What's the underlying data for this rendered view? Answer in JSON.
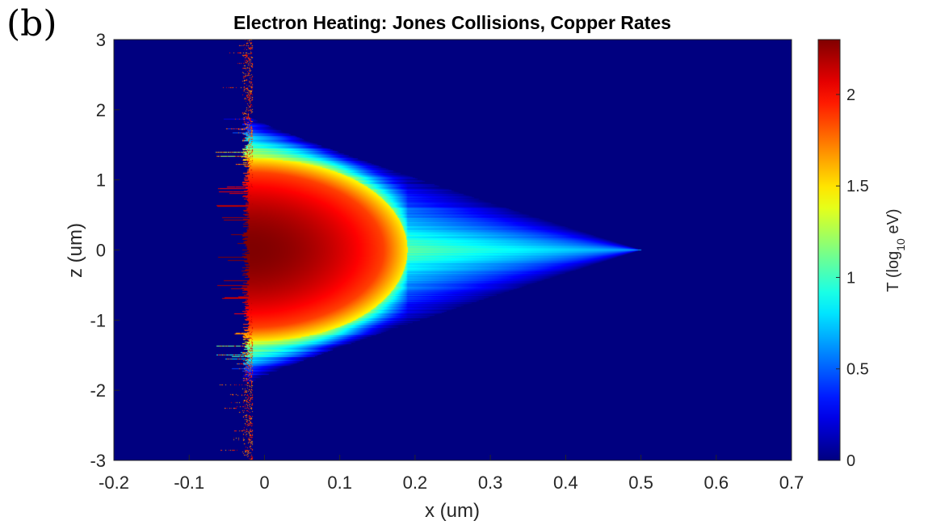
{
  "panel_label": "(b)",
  "chart_data": {
    "type": "heatmap",
    "title": "Electron Heating: Jones Collisions, Copper Rates",
    "xlabel": "x (um)",
    "ylabel": "z (um)",
    "xlim": [
      -0.2,
      0.7
    ],
    "ylim": [
      -3,
      3
    ],
    "x_ticks": [
      -0.2,
      -0.1,
      0,
      0.1,
      0.2,
      0.3,
      0.4,
      0.5,
      0.6,
      0.7
    ],
    "x_tick_labels": [
      "-0.2",
      "-0.1",
      "0",
      "0.1",
      "0.2",
      "0.3",
      "0.4",
      "0.5",
      "0.6",
      "0.7"
    ],
    "y_ticks": [
      -3,
      -2,
      -1,
      0,
      1,
      2,
      3
    ],
    "y_tick_labels": [
      "-3",
      "-2",
      "-1",
      "0",
      "1",
      "2",
      "3"
    ],
    "colormap": "jet",
    "colorbar": {
      "label_main": "T (log",
      "label_sub": "10",
      "label_end": " eV)",
      "range": [
        0,
        2.3
      ],
      "ticks": [
        0,
        0.5,
        1,
        1.5,
        2
      ],
      "tick_labels": [
        "0",
        "0.5",
        "1",
        "1.5",
        "2"
      ]
    },
    "field": {
      "description_values": "log10 electron temperature (eV) over x-z plane",
      "peak_value": 2.3,
      "peak_location": [
        0.0,
        0.0
      ],
      "front_x": -0.02,
      "hot_core_x_extent": [
        -0.02,
        0.19
      ],
      "hot_core_z_extent": [
        -1.3,
        1.3
      ],
      "halo_x_extent": [
        -0.02,
        0.5
      ],
      "halo_z_extent": [
        -1.9,
        1.9
      ],
      "background_value": 0.0
    },
    "colors": {
      "dark_blue": "#00008f",
      "blue": "#0000ff",
      "cyan": "#00ffff",
      "yellow": "#ffff00",
      "red": "#ff0000",
      "dark_red": "#800000"
    }
  }
}
